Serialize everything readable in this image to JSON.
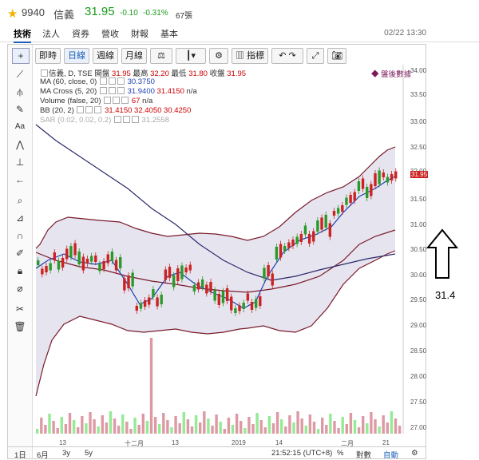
{
  "header": {
    "code": "9940",
    "name": "信義",
    "price": "31.95",
    "change": "-0.10",
    "change_pct": "-0.31%",
    "volume": "67張"
  },
  "tabs": [
    "技術",
    "法人",
    "資券",
    "營收",
    "財報",
    "基本"
  ],
  "datetime": "02/22 13:30",
  "toolbar": {
    "realtime": "即時",
    "daily": "日線",
    "weekly": "週線",
    "monthly": "月線",
    "indicator": "指標"
  },
  "after_hours": "盤後數據",
  "indicators": {
    "main": "信義, D, TSE",
    "open_label": "開盤",
    "open": "31.95",
    "high_label": "最高",
    "high": "32.20",
    "low_label": "最低",
    "low": "31.80",
    "close_label": "收盤",
    "close": "31.95",
    "ma60": "MA (60, close, 0)",
    "ma60_val": "30.3750",
    "macross": "MA Cross (5, 20)",
    "macross_v1": "31.9400",
    "macross_v2": "31.4150",
    "macross_v3": "n/a",
    "volume": "Volume (false, 20)",
    "volume_v1": "67",
    "volume_v2": "n/a",
    "bb": "BB (20, 2)",
    "bb_v1": "31.4150",
    "bb_v2": "32.4050",
    "bb_v3": "30.4250",
    "sar": "SAR (0.02, 0.02, 0.2)",
    "sar_val": "31.2558"
  },
  "y_axis": [
    "34.00",
    "33.50",
    "33.00",
    "32.50",
    "32.00",
    "31.95",
    "31.50",
    "31.00",
    "30.50",
    "30.00",
    "29.50",
    "29.00",
    "28.50",
    "28.00",
    "27.50",
    "27.00"
  ],
  "x_axis": [
    "13",
    "十二月",
    "13",
    "2019",
    "14",
    "二月",
    "21"
  ],
  "bottom": {
    "r1d": "1日",
    "r6m": "6月",
    "r3y": "3y",
    "r5y": "5y",
    "clock": "21:52:15 (UTC+8)",
    "pct": "%",
    "log": "對數",
    "auto": "自動"
  },
  "annotation": "31.4",
  "colors": {
    "up": "#cc2222",
    "down": "#2a9a2a",
    "ma": "#1d3fb0",
    "bb": "#7a1a2a",
    "bbfill": "#e6e4ef"
  }
}
